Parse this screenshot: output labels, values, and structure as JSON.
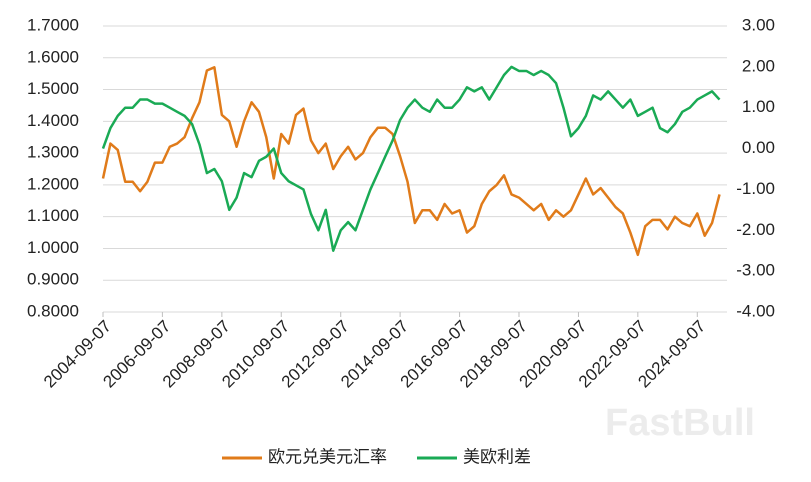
{
  "chart_data": {
    "type": "line",
    "watermark": "FastBull",
    "x": [
      "2004-09-07",
      "2004-12-07",
      "2005-03-07",
      "2005-06-07",
      "2005-09-07",
      "2005-12-07",
      "2006-03-07",
      "2006-06-07",
      "2006-09-07",
      "2006-12-07",
      "2007-03-07",
      "2007-06-07",
      "2007-09-07",
      "2007-12-07",
      "2008-03-07",
      "2008-06-07",
      "2008-09-07",
      "2008-12-07",
      "2009-03-07",
      "2009-06-07",
      "2009-09-07",
      "2009-12-07",
      "2010-03-07",
      "2010-06-07",
      "2010-09-07",
      "2010-12-07",
      "2011-03-07",
      "2011-06-07",
      "2011-09-07",
      "2011-12-07",
      "2012-03-07",
      "2012-06-07",
      "2012-09-07",
      "2012-12-07",
      "2013-03-07",
      "2013-06-07",
      "2013-09-07",
      "2013-12-07",
      "2014-03-07",
      "2014-06-07",
      "2014-09-07",
      "2014-12-07",
      "2015-03-07",
      "2015-06-07",
      "2015-09-07",
      "2015-12-07",
      "2016-03-07",
      "2016-06-07",
      "2016-09-07",
      "2016-12-07",
      "2017-03-07",
      "2017-06-07",
      "2017-09-07",
      "2017-12-07",
      "2018-03-07",
      "2018-06-07",
      "2018-09-07",
      "2018-12-07",
      "2019-03-07",
      "2019-06-07",
      "2019-09-07",
      "2019-12-07",
      "2020-03-07",
      "2020-06-07",
      "2020-09-07",
      "2020-12-07",
      "2021-03-07",
      "2021-06-07",
      "2021-09-07",
      "2021-12-07",
      "2022-03-07",
      "2022-06-07",
      "2022-09-07",
      "2022-12-07",
      "2023-03-07",
      "2023-06-07",
      "2023-09-07",
      "2023-12-07",
      "2024-03-07",
      "2024-06-07",
      "2024-09-07",
      "2024-12-07",
      "2025-03-07",
      "2025-06-07"
    ],
    "xlim": [
      "2004-09-07",
      "2025-09-07"
    ],
    "xticks": [
      "2004-09-07",
      "2006-09-07",
      "2008-09-07",
      "2010-09-07",
      "2012-09-07",
      "2014-09-07",
      "2016-09-07",
      "2018-09-07",
      "2020-09-07",
      "2022-09-07",
      "2024-09-07"
    ],
    "ylim": [
      0.8,
      1.7
    ],
    "yticks": [
      {
        "value": 0.8,
        "label": "0.8000"
      },
      {
        "value": 0.9,
        "label": "0.9000"
      },
      {
        "value": 1.0,
        "label": "1.0000"
      },
      {
        "value": 1.1,
        "label": "1.1000"
      },
      {
        "value": 1.2,
        "label": "1.2000"
      },
      {
        "value": 1.3,
        "label": "1.3000"
      },
      {
        "value": 1.4,
        "label": "1.4000"
      },
      {
        "value": 1.5,
        "label": "1.5000"
      },
      {
        "value": 1.6,
        "label": "1.6000"
      },
      {
        "value": 1.7,
        "label": "1.7000"
      }
    ],
    "y2lim": [
      -4,
      3
    ],
    "y2ticks": [
      {
        "value": -4,
        "label": "-4.00"
      },
      {
        "value": -3,
        "label": "-3.00"
      },
      {
        "value": -2,
        "label": "-2.00"
      },
      {
        "value": -1,
        "label": "-1.00"
      },
      {
        "value": 0,
        "label": "0.00"
      },
      {
        "value": 1,
        "label": "1.00"
      },
      {
        "value": 2,
        "label": "2.00"
      },
      {
        "value": 3,
        "label": "3.00"
      }
    ],
    "grid": true,
    "legend": "bottom",
    "series": [
      {
        "name": "欧元兑美元汇率",
        "color": "#e07b1a",
        "values": [
          1.22,
          1.33,
          1.31,
          1.21,
          1.21,
          1.18,
          1.21,
          1.27,
          1.27,
          1.32,
          1.33,
          1.35,
          1.41,
          1.46,
          1.56,
          1.57,
          1.42,
          1.4,
          1.32,
          1.4,
          1.46,
          1.43,
          1.35,
          1.22,
          1.36,
          1.33,
          1.42,
          1.44,
          1.34,
          1.3,
          1.33,
          1.25,
          1.29,
          1.32,
          1.28,
          1.3,
          1.35,
          1.38,
          1.38,
          1.36,
          1.29,
          1.21,
          1.08,
          1.12,
          1.12,
          1.09,
          1.14,
          1.11,
          1.12,
          1.05,
          1.07,
          1.14,
          1.18,
          1.2,
          1.23,
          1.17,
          1.16,
          1.14,
          1.12,
          1.14,
          1.09,
          1.12,
          1.1,
          1.12,
          1.17,
          1.22,
          1.17,
          1.19,
          1.16,
          1.13,
          1.11,
          1.05,
          0.98,
          1.07,
          1.09,
          1.09,
          1.06,
          1.1,
          1.08,
          1.07,
          1.11,
          1.04,
          1.08,
          1.17
        ]
      },
      {
        "name": "美欧利差",
        "color": "#1aaa55",
        "axis": "y2",
        "values": [
          0.0,
          0.5,
          0.8,
          1.0,
          1.0,
          1.2,
          1.2,
          1.1,
          1.1,
          1.0,
          0.9,
          0.8,
          0.6,
          0.1,
          -0.6,
          -0.5,
          -0.8,
          -1.5,
          -1.2,
          -0.6,
          -0.7,
          -0.3,
          -0.2,
          0.0,
          -0.6,
          -0.8,
          -0.9,
          -1.0,
          -1.6,
          -2.0,
          -1.5,
          -2.5,
          -2.0,
          -1.8,
          -2.0,
          -1.5,
          -1.0,
          -0.6,
          -0.2,
          0.2,
          0.7,
          1.0,
          1.2,
          1.0,
          0.9,
          1.2,
          1.0,
          1.0,
          1.2,
          1.5,
          1.4,
          1.5,
          1.2,
          1.5,
          1.8,
          2.0,
          1.9,
          1.9,
          1.8,
          1.9,
          1.8,
          1.6,
          1.0,
          0.3,
          0.5,
          0.8,
          1.3,
          1.2,
          1.4,
          1.2,
          1.0,
          1.2,
          0.8,
          0.9,
          1.0,
          0.5,
          0.4,
          0.6,
          0.9,
          1.0,
          1.2,
          1.3,
          1.4,
          1.2
        ]
      }
    ]
  }
}
